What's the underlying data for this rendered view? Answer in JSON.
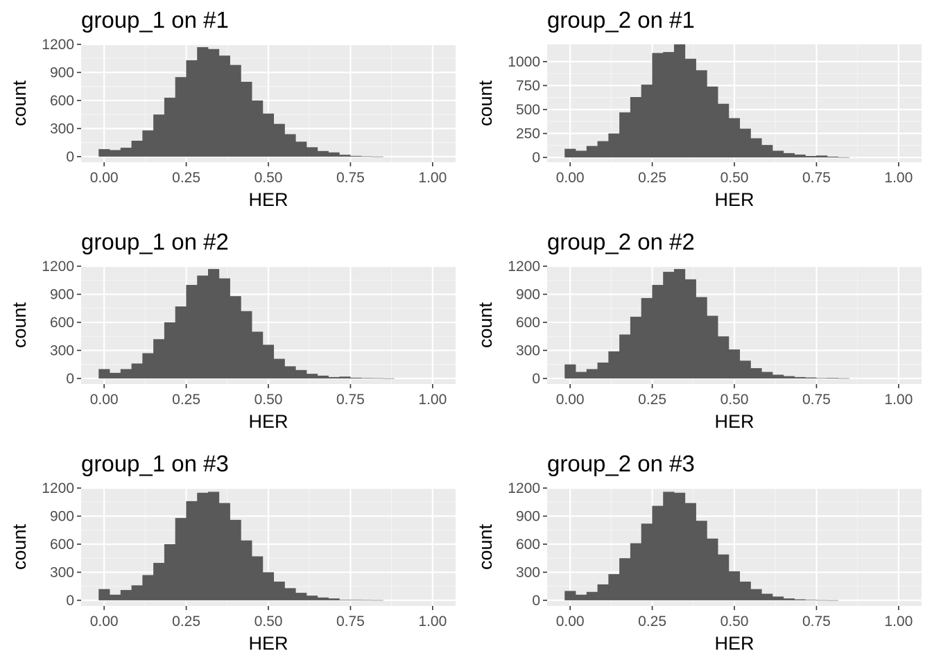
{
  "chart_data": [
    {
      "type": "bar",
      "title": "group_1 on #1",
      "xlabel": "HER",
      "ylabel": "count",
      "xlim": [
        -0.07,
        1.07
      ],
      "ylim": [
        -60,
        1200
      ],
      "xticks": [
        0,
        0.25,
        0.5,
        0.75,
        1
      ],
      "xtick_labels": [
        "0.00",
        "0.25",
        "0.50",
        "0.75",
        "1.00"
      ],
      "yticks": [
        0,
        300,
        600,
        900,
        1200
      ],
      "ytick_labels": [
        "0",
        "300",
        "600",
        "900",
        "1200"
      ],
      "bin_start": -0.0167,
      "bin_width": 0.0333,
      "values": [
        80,
        70,
        95,
        170,
        280,
        450,
        630,
        850,
        1030,
        1170,
        1150,
        1080,
        980,
        800,
        600,
        460,
        350,
        240,
        160,
        100,
        60,
        45,
        20,
        8,
        3,
        1,
        0,
        0,
        0,
        0,
        0
      ]
    },
    {
      "type": "bar",
      "title": "group_2 on #1",
      "xlabel": "HER",
      "ylabel": "count",
      "xlim": [
        -0.07,
        1.07
      ],
      "ylim": [
        -50,
        1180
      ],
      "xticks": [
        0,
        0.25,
        0.5,
        0.75,
        1
      ],
      "xtick_labels": [
        "0.00",
        "0.25",
        "0.50",
        "0.75",
        "1.00"
      ],
      "yticks": [
        0,
        250,
        500,
        750,
        1000
      ],
      "ytick_labels": [
        "0",
        "250",
        "500",
        "750",
        "1000"
      ],
      "bin_start": -0.0167,
      "bin_width": 0.0333,
      "values": [
        90,
        70,
        120,
        170,
        250,
        470,
        630,
        760,
        1090,
        1100,
        1180,
        1030,
        910,
        740,
        560,
        410,
        300,
        200,
        130,
        70,
        45,
        30,
        15,
        20,
        8,
        2,
        0,
        0,
        0,
        0,
        0
      ]
    },
    {
      "type": "bar",
      "title": "group_1 on #2",
      "xlabel": "HER",
      "ylabel": "count",
      "xlim": [
        -0.07,
        1.07
      ],
      "ylim": [
        -60,
        1200
      ],
      "xticks": [
        0,
        0.25,
        0.5,
        0.75,
        1
      ],
      "xtick_labels": [
        "0.00",
        "0.25",
        "0.50",
        "0.75",
        "1.00"
      ],
      "yticks": [
        0,
        300,
        600,
        900,
        1200
      ],
      "ytick_labels": [
        "0",
        "300",
        "600",
        "900",
        "1200"
      ],
      "bin_start": -0.0167,
      "bin_width": 0.0333,
      "values": [
        100,
        60,
        100,
        160,
        270,
        420,
        600,
        770,
        1000,
        1100,
        1170,
        1070,
        880,
        720,
        500,
        360,
        210,
        130,
        90,
        50,
        30,
        15,
        20,
        8,
        5,
        3,
        1,
        0,
        0,
        0,
        0
      ]
    },
    {
      "type": "bar",
      "title": "group_2 on #2",
      "xlabel": "HER",
      "ylabel": "count",
      "xlim": [
        -0.07,
        1.07
      ],
      "ylim": [
        -60,
        1200
      ],
      "xticks": [
        0,
        0.25,
        0.5,
        0.75,
        1
      ],
      "xtick_labels": [
        "0.00",
        "0.25",
        "0.50",
        "0.75",
        "1.00"
      ],
      "yticks": [
        0,
        300,
        600,
        900,
        1200
      ],
      "ytick_labels": [
        "0",
        "300",
        "600",
        "900",
        "1200"
      ],
      "bin_start": -0.0167,
      "bin_width": 0.0333,
      "values": [
        150,
        70,
        100,
        170,
        290,
        470,
        660,
        860,
        1000,
        1140,
        1170,
        1060,
        870,
        670,
        450,
        310,
        190,
        110,
        70,
        40,
        25,
        15,
        10,
        4,
        6,
        2,
        0,
        0,
        0,
        0,
        0
      ]
    },
    {
      "type": "bar",
      "title": "group_1 on #3",
      "xlabel": "HER",
      "ylabel": "count",
      "xlim": [
        -0.07,
        1.07
      ],
      "ylim": [
        -60,
        1200
      ],
      "xticks": [
        0,
        0.25,
        0.5,
        0.75,
        1
      ],
      "xtick_labels": [
        "0.00",
        "0.25",
        "0.50",
        "0.75",
        "1.00"
      ],
      "yticks": [
        0,
        300,
        600,
        900,
        1200
      ],
      "ytick_labels": [
        "0",
        "300",
        "600",
        "900",
        "1200"
      ],
      "bin_start": -0.0167,
      "bin_width": 0.0333,
      "values": [
        120,
        60,
        110,
        160,
        270,
        400,
        600,
        880,
        1060,
        1150,
        1160,
        1040,
        860,
        640,
        470,
        300,
        200,
        130,
        80,
        50,
        30,
        20,
        5,
        5,
        3,
        2,
        0,
        0,
        0,
        0,
        0
      ]
    },
    {
      "type": "bar",
      "title": "group_2 on #3",
      "xlabel": "HER",
      "ylabel": "count",
      "xlim": [
        -0.07,
        1.07
      ],
      "ylim": [
        -60,
        1200
      ],
      "xticks": [
        0,
        0.25,
        0.5,
        0.75,
        1
      ],
      "xtick_labels": [
        "0.00",
        "0.25",
        "0.50",
        "0.75",
        "1.00"
      ],
      "yticks": [
        0,
        300,
        600,
        900,
        1200
      ],
      "ytick_labels": [
        "0",
        "300",
        "600",
        "900",
        "1200"
      ],
      "bin_start": -0.0167,
      "bin_width": 0.0333,
      "values": [
        100,
        60,
        90,
        170,
        280,
        450,
        610,
        820,
        1010,
        1160,
        1150,
        1040,
        850,
        660,
        490,
        310,
        200,
        120,
        70,
        40,
        20,
        10,
        5,
        2,
        1,
        0,
        0,
        0,
        0,
        0,
        0
      ]
    }
  ],
  "style": {
    "panel_background": "#ebebeb",
    "grid_major": "#ffffff",
    "grid_minor": "#f5f5f5",
    "bar_fill": "#595959",
    "tick_color": "#333333",
    "tick_label_color": "#4d4d4d"
  }
}
